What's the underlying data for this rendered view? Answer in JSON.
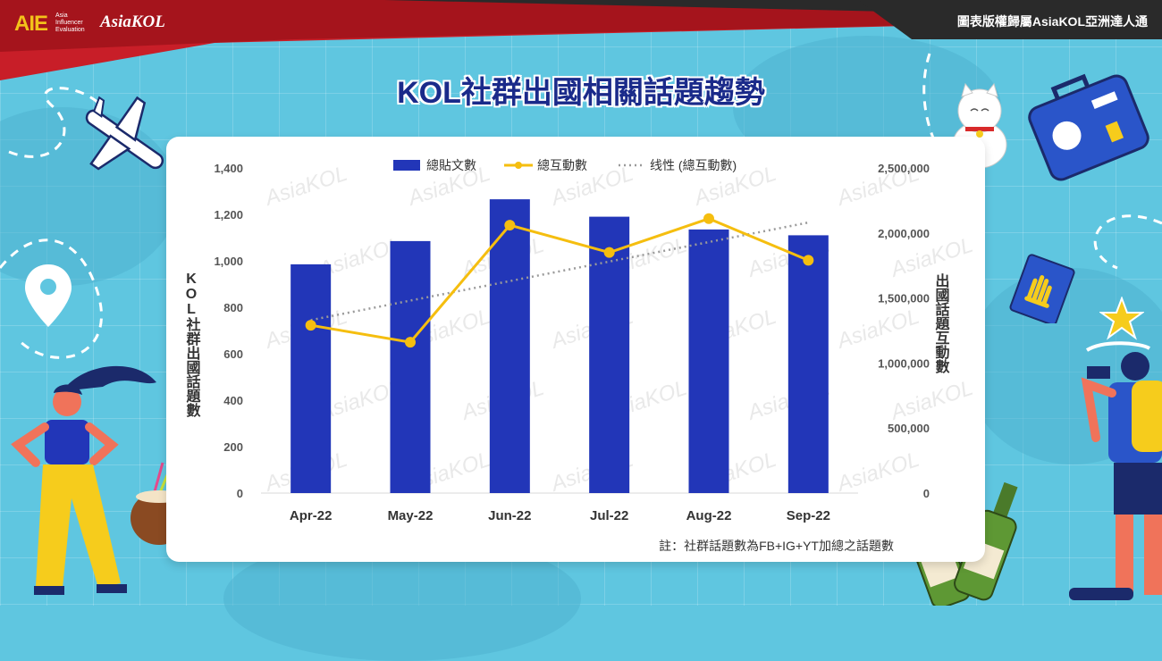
{
  "header": {
    "brand_aie": "AIE",
    "brand_aie_sub": [
      "Asia",
      "Influencer",
      "Evaluation"
    ],
    "brand_kol": "AsiaKOL",
    "copyright": "圖表版權歸屬AsiaKOL亞洲達人通"
  },
  "page_title": "KOL社群出國相關話題趨勢",
  "note": "註：社群話題數為FB+IG+YT加總之話題數",
  "colors": {
    "bar": "#2236b8",
    "line": "#f5be0f",
    "trend": "#9a9a9a",
    "title": "#1a2a8a",
    "topbar_red": "#c81e28",
    "topbar_dark": "#2a2a2a"
  },
  "chart_data": {
    "type": "bar",
    "categories": [
      "Apr-22",
      "May-22",
      "Jun-22",
      "Jul-22",
      "Aug-22",
      "Sep-22"
    ],
    "series": [
      {
        "name": "總貼文數",
        "type": "bar",
        "axis": "left",
        "values": [
          985,
          1085,
          1265,
          1190,
          1135,
          1110
        ]
      },
      {
        "name": "總互動數",
        "type": "line",
        "axis": "right",
        "values": [
          1290000,
          1160000,
          2060000,
          1850000,
          2110000,
          1790000
        ]
      },
      {
        "name": "线性 (總互動數)",
        "type": "trendline",
        "axis": "right",
        "values": [
          1330000,
          1480000,
          1630000,
          1780000,
          1930000,
          2080000
        ]
      }
    ],
    "y_left": {
      "label": "KOL社群出國話題數",
      "min": 0,
      "max": 1400,
      "ticks": [
        "0",
        "200",
        "400",
        "600",
        "800",
        "1,000",
        "1,200",
        "1,400"
      ]
    },
    "y_right": {
      "label": "出國話題互動數",
      "min": 0,
      "max": 2500000,
      "ticks": [
        "0",
        "500,000",
        "1,000,000",
        "1,500,000",
        "2,000,000",
        "2,500,000"
      ]
    },
    "legend_position": "top-center",
    "grid": false
  }
}
